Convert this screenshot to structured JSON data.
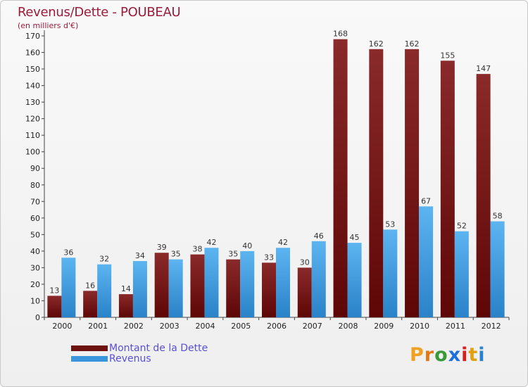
{
  "title": "Revenus/Dette - POUBEAU",
  "subtitle": "(en milliers d'€)",
  "brand": {
    "letters": [
      "P",
      "r",
      "o",
      "x",
      "i",
      "t",
      "i"
    ],
    "colors": [
      "#f0a020",
      "#e07818",
      "#3a9a3a",
      "#1f6fd8",
      "#d8201e",
      "#e0a010",
      "#2a80d0"
    ]
  },
  "colors": {
    "dette": "#6e1010",
    "revenus": "#3a95dd",
    "title": "#9b1b3a",
    "legend_text": "#5a4fd6"
  },
  "legend": [
    {
      "label": "Montant de la Dette",
      "color": "#6e1010"
    },
    {
      "label": "Revenus",
      "color": "#3a95dd"
    }
  ],
  "chart_data": {
    "type": "bar",
    "categories": [
      "2000",
      "2001",
      "2002",
      "2003",
      "2004",
      "2005",
      "2006",
      "2007",
      "2008",
      "2009",
      "2010",
      "2011",
      "2012"
    ],
    "series": [
      {
        "name": "Montant de la Dette",
        "values": [
          13,
          16,
          14,
          39,
          38,
          35,
          33,
          30,
          168,
          162,
          162,
          155,
          147
        ]
      },
      {
        "name": "Revenus",
        "values": [
          36,
          32,
          34,
          35,
          42,
          40,
          42,
          46,
          45,
          53,
          67,
          52,
          58
        ]
      }
    ],
    "ylim": [
      0,
      170
    ],
    "yticks": [
      0,
      10,
      20,
      30,
      40,
      50,
      60,
      70,
      80,
      90,
      100,
      110,
      120,
      130,
      140,
      150,
      160,
      170
    ],
    "grid": false,
    "legend_position": "bottom-left"
  }
}
